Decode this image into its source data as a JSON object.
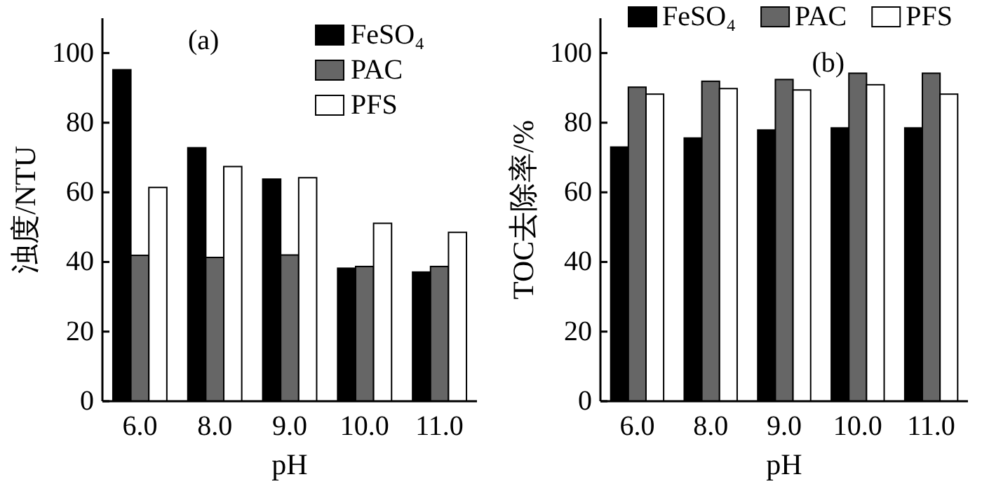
{
  "chart_data": [
    {
      "type": "bar",
      "title": "(a)",
      "xlabel": "pH",
      "ylabel": "浊度/NTU",
      "categories": [
        "6.0",
        "8.0",
        "9.0",
        "10.0",
        "11.0"
      ],
      "series": [
        {
          "name": "FeSO₄",
          "color": "#000000",
          "values": [
            95.2,
            72.8,
            63.8,
            38.2,
            37.1
          ]
        },
        {
          "name": "PAC",
          "color": "#666666",
          "values": [
            41.9,
            41.3,
            42.0,
            38.7,
            38.7
          ]
        },
        {
          "name": "PFS",
          "color": "#ffffff",
          "values": [
            61.4,
            67.4,
            64.2,
            51.1,
            48.5
          ]
        }
      ],
      "ylim": [
        0,
        110
      ],
      "yticks": [
        0,
        20,
        40,
        60,
        80,
        100
      ],
      "grid": false,
      "legend": "top right"
    },
    {
      "type": "bar",
      "title": "(b)",
      "xlabel": "pH",
      "ylabel": "TOC去除率/%",
      "categories": [
        "6.0",
        "8.0",
        "9.0",
        "10.0",
        "11.0"
      ],
      "series": [
        {
          "name": "FeSO₄",
          "color": "#000000",
          "values": [
            73.0,
            75.6,
            77.9,
            78.5,
            78.5
          ]
        },
        {
          "name": "PAC",
          "color": "#666666",
          "values": [
            90.2,
            91.9,
            92.4,
            94.2,
            94.2
          ]
        },
        {
          "name": "PFS",
          "color": "#ffffff",
          "values": [
            88.2,
            89.8,
            89.4,
            90.9,
            88.2
          ]
        }
      ],
      "ylim": [
        0,
        110
      ],
      "yticks": [
        0,
        20,
        40,
        60,
        80,
        100
      ],
      "grid": false,
      "legend": "top"
    }
  ]
}
